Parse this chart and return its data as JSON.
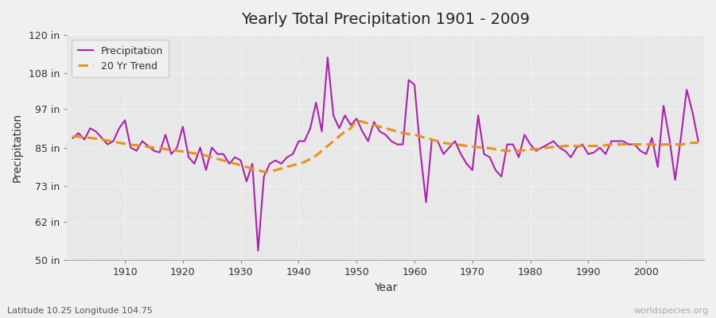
{
  "title": "Yearly Total Precipitation 1901 - 2009",
  "xlabel": "Year",
  "ylabel": "Precipitation",
  "footnote_left": "Latitude 10.25 Longitude 104.75",
  "footnote_right": "worldspecies.org",
  "background_color": "#f0f0f0",
  "plot_bg_color": "#e8e8e8",
  "precip_color": "#aa22aa",
  "trend_color": "#e8921e",
  "ylim": [
    50,
    120
  ],
  "yticks": [
    50,
    62,
    73,
    85,
    97,
    108,
    120
  ],
  "ytick_labels": [
    "50 in",
    "62 in",
    "73 in",
    "85 in",
    "97 in",
    "108 in",
    "120 in"
  ],
  "years": [
    1901,
    1902,
    1903,
    1904,
    1905,
    1906,
    1907,
    1908,
    1909,
    1910,
    1911,
    1912,
    1913,
    1914,
    1915,
    1916,
    1917,
    1918,
    1919,
    1920,
    1921,
    1922,
    1923,
    1924,
    1925,
    1926,
    1927,
    1928,
    1929,
    1930,
    1931,
    1932,
    1933,
    1934,
    1935,
    1936,
    1937,
    1938,
    1939,
    1940,
    1941,
    1942,
    1943,
    1944,
    1945,
    1946,
    1947,
    1948,
    1949,
    1950,
    1951,
    1952,
    1953,
    1954,
    1955,
    1956,
    1957,
    1958,
    1959,
    1960,
    1961,
    1962,
    1963,
    1964,
    1965,
    1966,
    1967,
    1968,
    1969,
    1970,
    1971,
    1972,
    1973,
    1974,
    1975,
    1976,
    1977,
    1978,
    1979,
    1980,
    1981,
    1982,
    1983,
    1984,
    1985,
    1986,
    1987,
    1988,
    1989,
    1990,
    1991,
    1992,
    1993,
    1994,
    1995,
    1996,
    1997,
    1998,
    1999,
    2000,
    2001,
    2002,
    2003,
    2004,
    2005,
    2006,
    2007,
    2008,
    2009
  ],
  "precip": [
    88.0,
    89.5,
    87.5,
    91.0,
    90.0,
    88.0,
    86.0,
    87.0,
    91.0,
    93.5,
    85.0,
    84.0,
    87.0,
    85.5,
    84.0,
    83.5,
    89.0,
    83.0,
    85.0,
    91.5,
    82.0,
    80.0,
    85.0,
    78.0,
    85.0,
    83.0,
    83.0,
    80.0,
    82.0,
    81.0,
    74.5,
    80.0,
    53.0,
    76.0,
    80.0,
    81.0,
    80.0,
    82.0,
    83.0,
    87.0,
    87.0,
    91.0,
    99.0,
    90.0,
    113.0,
    95.0,
    91.0,
    95.0,
    92.0,
    94.0,
    90.0,
    87.0,
    93.0,
    90.0,
    89.0,
    87.0,
    86.0,
    86.0,
    106.0,
    104.5,
    84.0,
    68.0,
    87.5,
    87.0,
    83.0,
    85.0,
    87.0,
    83.0,
    80.0,
    78.0,
    95.0,
    83.0,
    82.0,
    78.0,
    76.0,
    86.0,
    86.0,
    82.0,
    89.0,
    86.0,
    84.0,
    85.0,
    86.0,
    87.0,
    85.0,
    84.0,
    82.0,
    85.0,
    86.0,
    83.0,
    83.5,
    85.0,
    83.0,
    87.0,
    87.0,
    87.0,
    86.0,
    86.0,
    84.0,
    83.0,
    88.0,
    79.0,
    98.0,
    88.0,
    75.0,
    88.0,
    103.0,
    96.0,
    87.0
  ],
  "trend": [
    88.5,
    88.4,
    88.2,
    88.0,
    87.8,
    87.5,
    87.2,
    86.9,
    86.5,
    86.2,
    85.9,
    85.7,
    85.5,
    85.2,
    85.0,
    84.8,
    84.5,
    84.2,
    84.0,
    83.8,
    83.5,
    83.2,
    83.0,
    82.5,
    82.0,
    81.5,
    81.0,
    80.5,
    80.0,
    79.5,
    79.0,
    78.5,
    78.0,
    77.5,
    77.5,
    78.0,
    78.5,
    79.0,
    79.5,
    80.0,
    80.5,
    81.5,
    82.5,
    84.0,
    85.5,
    87.0,
    88.5,
    90.0,
    91.0,
    93.5,
    93.0,
    92.5,
    92.0,
    91.5,
    91.0,
    90.5,
    90.0,
    89.5,
    89.2,
    89.0,
    88.5,
    88.0,
    87.5,
    87.0,
    86.5,
    86.2,
    86.0,
    85.8,
    85.5,
    85.3,
    85.1,
    85.0,
    84.8,
    84.5,
    84.2,
    84.0,
    84.0,
    84.0,
    84.2,
    84.5,
    84.5,
    84.7,
    85.0,
    85.2,
    85.3,
    85.5,
    85.5,
    85.5,
    85.5,
    85.5,
    85.5,
    85.5,
    85.7,
    86.0,
    86.0,
    86.0,
    86.0,
    86.0,
    86.0,
    86.0,
    86.0,
    85.8,
    86.0,
    86.0,
    86.0,
    86.0,
    86.2,
    86.5,
    86.5
  ]
}
